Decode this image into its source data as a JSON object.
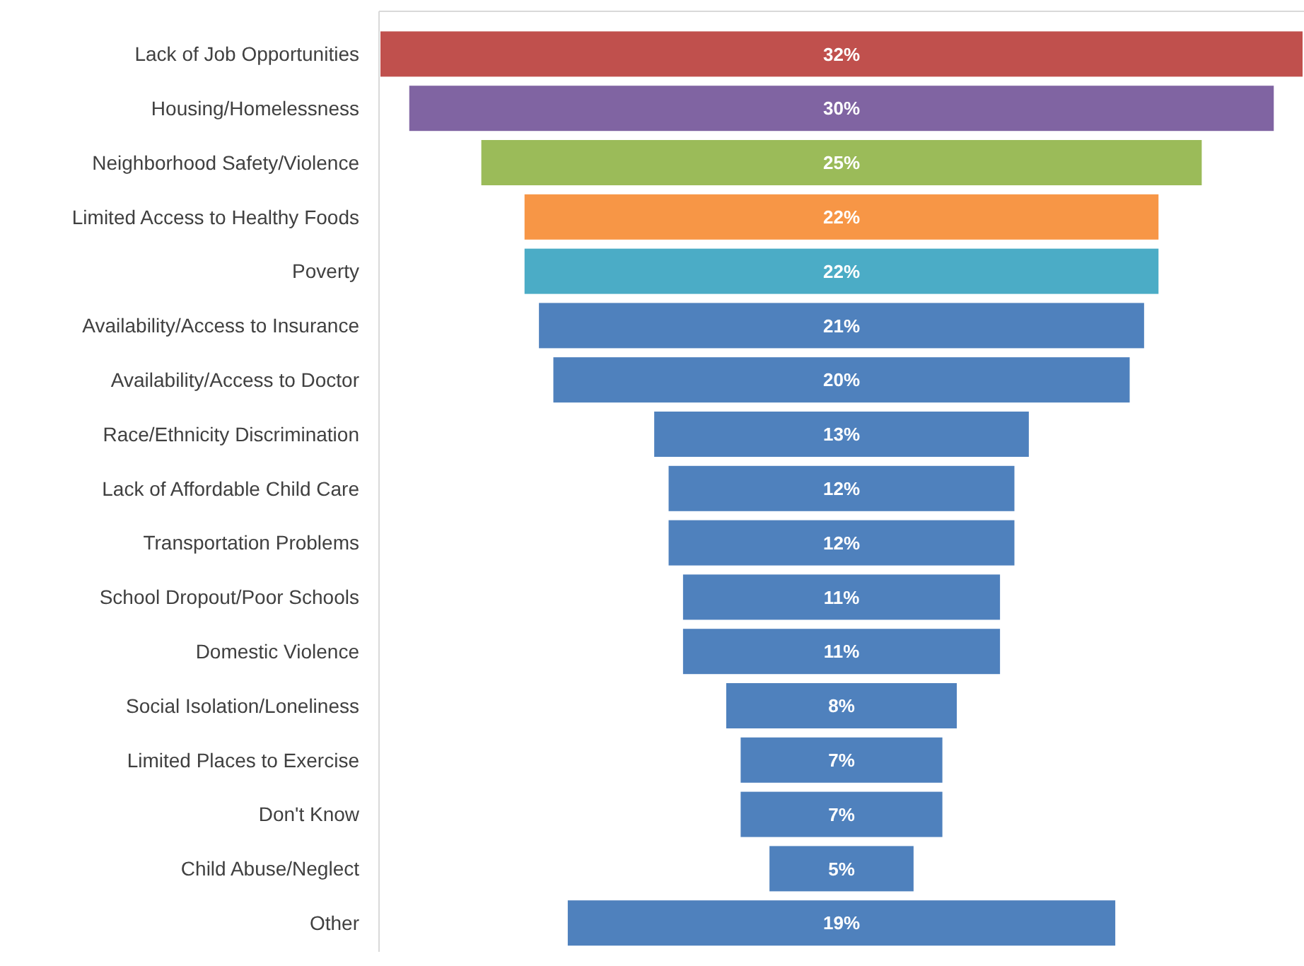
{
  "chart_data": {
    "type": "other",
    "categories": [
      "Lack of Job Opportunities",
      "Housing/Homelessness",
      "Neighborhood Safety/Violence",
      "Limited Access to Healthy Foods",
      "Poverty",
      "Availability/Access to Insurance",
      "Availability/Access to Doctor",
      "Race/Ethnicity Discrimination",
      "Lack of Affordable Child Care",
      "Transportation Problems",
      "School Dropout/Poor Schools",
      "Domestic Violence",
      "Social Isolation/Loneliness",
      "Limited Places to Exercise",
      "Don't Know",
      "Child Abuse/Neglect",
      "Other"
    ],
    "values": [
      32,
      30,
      25,
      22,
      22,
      21,
      20,
      13,
      12,
      12,
      11,
      11,
      8,
      7,
      7,
      5,
      19
    ],
    "value_labels": [
      "32%",
      "30%",
      "25%",
      "22%",
      "22%",
      "21%",
      "20%",
      "13%",
      "12%",
      "12%",
      "11%",
      "11%",
      "8%",
      "7%",
      "7%",
      "5%",
      "19%"
    ],
    "colors": [
      "#c0504d",
      "#8064a2",
      "#9bbb59",
      "#f79646",
      "#4bacc6",
      "#4f81bd",
      "#4f81bd",
      "#4f81bd",
      "#4f81bd",
      "#4f81bd",
      "#4f81bd",
      "#4f81bd",
      "#4f81bd",
      "#4f81bd",
      "#4f81bd",
      "#4f81bd",
      "#4f81bd"
    ]
  }
}
